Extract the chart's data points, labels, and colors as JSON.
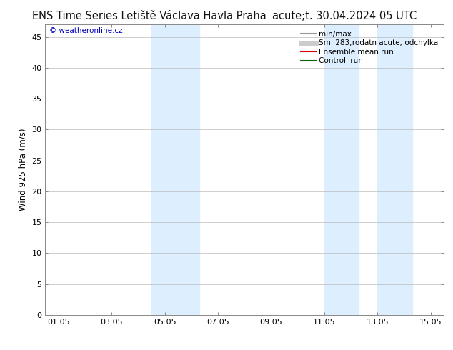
{
  "title_left": "ENS Time Series Letiště Václava Havla Praha",
  "title_right": "acute;t. 30.04.2024 05 UTC",
  "ylabel": "Wind 925 hPa (m/s)",
  "yticks": [
    0,
    5,
    10,
    15,
    20,
    25,
    30,
    35,
    40,
    45
  ],
  "ylim": [
    0,
    47
  ],
  "xtick_labels": [
    "01.05",
    "03.05",
    "05.05",
    "07.05",
    "09.05",
    "11.05",
    "13.05",
    "15.05"
  ],
  "xtick_positions": [
    0,
    2,
    4,
    6,
    8,
    10,
    12,
    14
  ],
  "xlim": [
    -0.5,
    14.5
  ],
  "shade_bands": [
    {
      "x_start": 3.5,
      "x_end": 4.5,
      "color": "#ddeeff"
    },
    {
      "x_start": 4.5,
      "x_end": 5.3,
      "color": "#ddeeff"
    },
    {
      "x_start": 10.0,
      "x_end": 11.3,
      "color": "#ddeeff"
    },
    {
      "x_start": 12.0,
      "x_end": 13.3,
      "color": "#ddeeff"
    }
  ],
  "legend_entries": [
    {
      "label": "min/max",
      "color": "#999999",
      "linewidth": 1.5,
      "type": "line"
    },
    {
      "label": "Sm  283;rodatn acute; odchylka",
      "color": "#cccccc",
      "linewidth": 5,
      "type": "line"
    },
    {
      "label": "Ensemble mean run",
      "color": "#cc0000",
      "linewidth": 1.5,
      "type": "line"
    },
    {
      "label": "Controll run",
      "color": "#006600",
      "linewidth": 1.5,
      "type": "line"
    }
  ],
  "watermark": "© weatheronline.cz",
  "watermark_color": "#0000bb",
  "bg_color": "#ffffff",
  "plot_bg_color": "#ffffff",
  "grid_color": "#bbbbbb",
  "title_fontsize": 10.5,
  "tick_fontsize": 8,
  "ylabel_fontsize": 8.5,
  "legend_fontsize": 7.5
}
